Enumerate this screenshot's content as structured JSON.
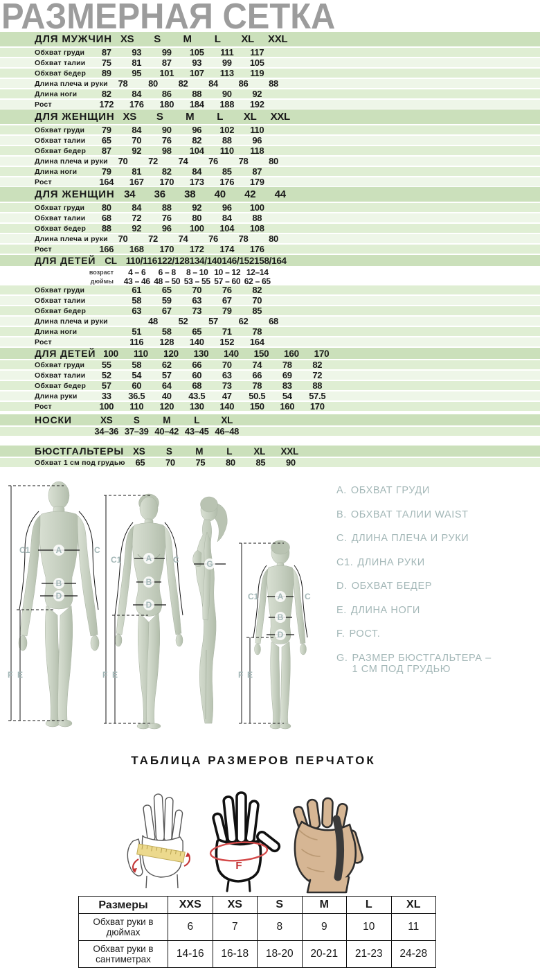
{
  "page_title": "РАЗМЕРНАЯ СЕТКА",
  "colors": {
    "header_green": "#cbe0bb",
    "row_green_dark": "#dfeed3",
    "row_green_light": "#eef6e8",
    "title_gray": "#9c9c9c",
    "legend_gray": "#a3b7b7",
    "text_dark": "#1a1a1a",
    "accent_red": "#cc3333",
    "tape_yellow": "#ecd98d",
    "glove_tan": "#d6b694"
  },
  "tables": [
    {
      "title": "ДЛЯ МУЖЧИН",
      "columns": [
        "XS",
        "S",
        "M",
        "L",
        "XL",
        "XXL"
      ],
      "rows": [
        {
          "label": "Обхват груди",
          "values": [
            "87",
            "93",
            "99",
            "105",
            "111",
            "117"
          ]
        },
        {
          "label": "Обхват талии",
          "values": [
            "75",
            "81",
            "87",
            "93",
            "99",
            "105"
          ]
        },
        {
          "label": "Обхват бедер",
          "values": [
            "89",
            "95",
            "101",
            "107",
            "113",
            "119"
          ]
        },
        {
          "label": "Длина плеча и руки",
          "values": [
            "78",
            "80",
            "82",
            "84",
            "86",
            "88"
          ]
        },
        {
          "label": "Длина ноги",
          "values": [
            "82",
            "84",
            "86",
            "88",
            "90",
            "92"
          ]
        },
        {
          "label": "Рост",
          "values": [
            "172",
            "176",
            "180",
            "184",
            "188",
            "192"
          ]
        }
      ]
    },
    {
      "title": "ДЛЯ ЖЕНЩИН",
      "columns": [
        "XS",
        "S",
        "M",
        "L",
        "XL",
        "XXL"
      ],
      "rows": [
        {
          "label": "Обхват груди",
          "values": [
            "79",
            "84",
            "90",
            "96",
            "102",
            "110"
          ]
        },
        {
          "label": "Обхват талии",
          "values": [
            "65",
            "70",
            "76",
            "82",
            "88",
            "96"
          ]
        },
        {
          "label": "Обхват бедер",
          "values": [
            "87",
            "92",
            "98",
            "104",
            "110",
            "118"
          ]
        },
        {
          "label": "Длина плеча и руки",
          "values": [
            "70",
            "72",
            "74",
            "76",
            "78",
            "80"
          ]
        },
        {
          "label": "Длина ноги",
          "values": [
            "79",
            "81",
            "82",
            "84",
            "85",
            "87"
          ]
        },
        {
          "label": "Рост",
          "values": [
            "164",
            "167",
            "170",
            "173",
            "176",
            "179"
          ]
        }
      ]
    },
    {
      "title": "ДЛЯ ЖЕНЩИН",
      "columns": [
        "34",
        "36",
        "38",
        "40",
        "42",
        "44"
      ],
      "rows": [
        {
          "label": "Обхват груди",
          "values": [
            "80",
            "84",
            "88",
            "92",
            "96",
            "100"
          ]
        },
        {
          "label": "Обхват талии",
          "values": [
            "68",
            "72",
            "76",
            "80",
            "84",
            "88"
          ]
        },
        {
          "label": "Обхват бедер",
          "values": [
            "88",
            "92",
            "96",
            "100",
            "104",
            "108"
          ]
        },
        {
          "label": "Длина плеча и руки",
          "values": [
            "70",
            "72",
            "74",
            "76",
            "78",
            "80"
          ]
        },
        {
          "label": "Рост",
          "values": [
            "166",
            "168",
            "170",
            "172",
            "174",
            "176"
          ]
        }
      ]
    },
    {
      "title": "ДЛЯ ДЕТЕЙ",
      "corner": "CL",
      "columns": [
        "110/116",
        "122/128",
        "134/140",
        "146/152",
        "158/164"
      ],
      "subrows": [
        {
          "label": "возраст",
          "values": [
            "4 – 6",
            "6 – 8",
            "8 – 10",
            "10 – 12",
            "12–14"
          ]
        },
        {
          "label": "дюймы",
          "values": [
            "43 – 46",
            "48 – 50",
            "53 – 55",
            "57 – 60",
            "62 – 65"
          ]
        }
      ],
      "rows": [
        {
          "label": "Обхват груди",
          "values": [
            "61",
            "65",
            "70",
            "76",
            "82"
          ]
        },
        {
          "label": "Обхват талии",
          "values": [
            "58",
            "59",
            "63",
            "67",
            "70"
          ]
        },
        {
          "label": "Обхват бедер",
          "values": [
            "63",
            "67",
            "73",
            "79",
            "85"
          ]
        },
        {
          "label": "Длина плеча и руки",
          "values": [
            "48",
            "52",
            "57",
            "62",
            "68"
          ]
        },
        {
          "label": "Длина ноги",
          "values": [
            "51",
            "58",
            "65",
            "71",
            "78"
          ]
        },
        {
          "label": "Рост",
          "values": [
            "116",
            "128",
            "140",
            "152",
            "164"
          ]
        }
      ]
    },
    {
      "title": "ДЛЯ ДЕТЕЙ",
      "columns": [
        "100",
        "110",
        "120",
        "130",
        "140",
        "150",
        "160",
        "170"
      ],
      "rows": [
        {
          "label": "Обхват груди",
          "values": [
            "55",
            "58",
            "62",
            "66",
            "70",
            "74",
            "78",
            "82"
          ]
        },
        {
          "label": "Обхват талии",
          "values": [
            "52",
            "54",
            "57",
            "60",
            "63",
            "66",
            "69",
            "72"
          ]
        },
        {
          "label": "Обхват бедер",
          "values": [
            "57",
            "60",
            "64",
            "68",
            "73",
            "78",
            "83",
            "88"
          ]
        },
        {
          "label": "Длина руки",
          "values": [
            "33",
            "36.5",
            "40",
            "43.5",
            "47",
            "50.5",
            "54",
            "57.5"
          ]
        },
        {
          "label": "Рост",
          "values": [
            "100",
            "110",
            "120",
            "130",
            "140",
            "150",
            "160",
            "170"
          ]
        }
      ]
    },
    {
      "title": "НОСКИ",
      "columns": [
        "XS",
        "S",
        "M",
        "L",
        "XL"
      ],
      "rows": [
        {
          "label": "",
          "values": [
            "34–36",
            "37–39",
            "40–42",
            "43–45",
            "46–48"
          ]
        }
      ]
    },
    {
      "title": "БЮСТГАЛЬТЕРЫ",
      "columns": [
        "XS",
        "S",
        "M",
        "L",
        "XL",
        "XXL"
      ],
      "rows": [
        {
          "label": "Обхват 1 см под грудью",
          "values": [
            "65",
            "70",
            "75",
            "80",
            "85",
            "90"
          ]
        }
      ]
    }
  ],
  "legend": [
    {
      "key": "A.",
      "text": "ОБХВАТ ГРУДИ"
    },
    {
      "key": "B.",
      "text": "ОБХВАТ ТАЛИИ WAIST"
    },
    {
      "key": "C.",
      "text": "ДЛИНА ПЛЕЧА И РУКИ"
    },
    {
      "key": "C1.",
      "text": "ДЛИНА РУКИ"
    },
    {
      "key": "D.",
      "text": "ОБХВАТ БЕДЕР"
    },
    {
      "key": "E.",
      "text": "ДЛИНА НОГИ"
    },
    {
      "key": "F.",
      "text": "РОСТ."
    },
    {
      "key": "G.",
      "text": "РАЗМЕР БЮСТГАЛЬТЕРА – 1 СМ ПОД ГРУДЬЮ"
    }
  ],
  "figures": {
    "letters": {
      "a": "A",
      "b": "B",
      "c": "C",
      "c1": "C1",
      "d": "D",
      "e": "E",
      "f": "F",
      "g": "G"
    }
  },
  "gloves": {
    "title": "ТАБЛИЦА РАЗМЕРОВ ПЕРЧАТОК",
    "hand_measure_label": "F",
    "table": {
      "header": [
        "Размеры",
        "XXS",
        "XS",
        "S",
        "M",
        "L",
        "XL"
      ],
      "rows": [
        {
          "label": "Обхват руки в дюймах",
          "values": [
            "6",
            "7",
            "8",
            "9",
            "10",
            "11"
          ]
        },
        {
          "label": "Обхват руки в сантиметрах",
          "values": [
            "14-16",
            "16-18",
            "18-20",
            "20-21",
            "21-23",
            "24-28"
          ]
        }
      ]
    }
  }
}
